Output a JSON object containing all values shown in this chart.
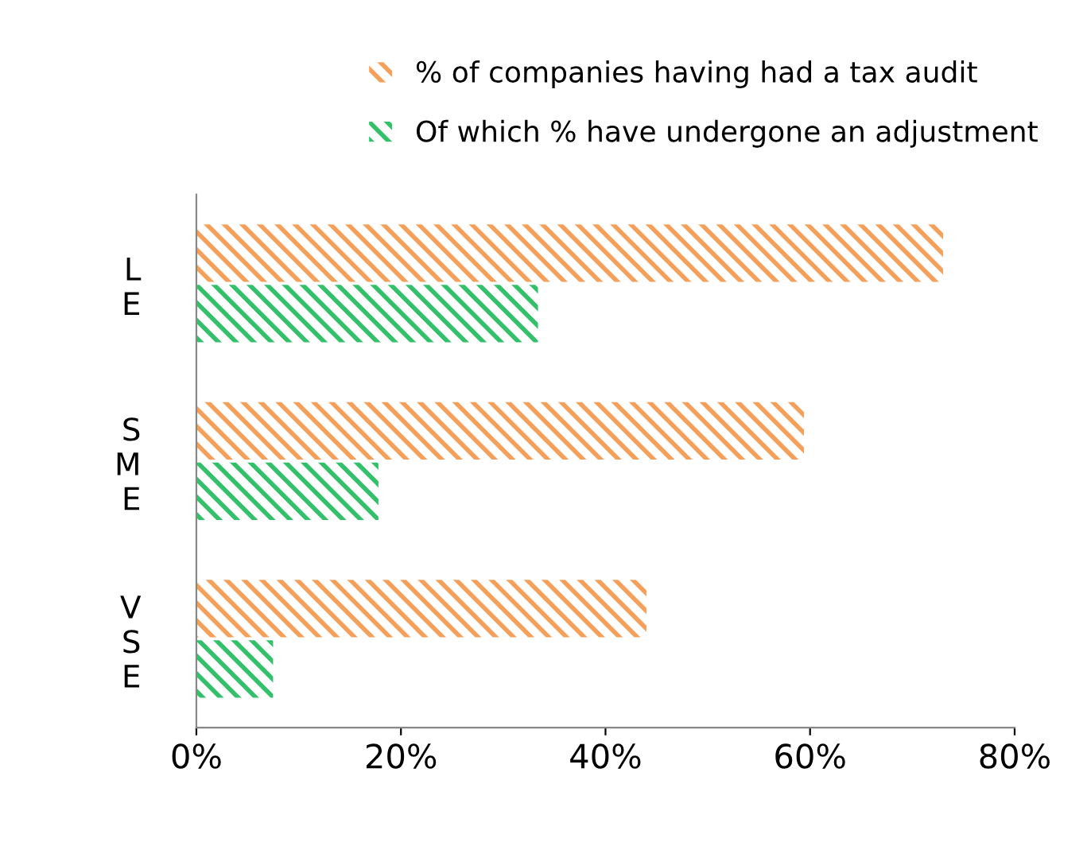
{
  "chart_data": {
    "type": "bar",
    "orientation": "horizontal",
    "categories": [
      "LE",
      "SME",
      "VSE"
    ],
    "series": [
      {
        "name": "% of companies having had a tax audit",
        "color": "#f5a05a",
        "values": [
          73,
          59.4,
          44
        ]
      },
      {
        "name": "Of which % have undergone an adjustment",
        "color": "#33c06a",
        "values": [
          33.4,
          17.8,
          7.5
        ]
      }
    ],
    "xlim": [
      0,
      80
    ],
    "xticks": [
      {
        "value": 0,
        "label": "0%"
      },
      {
        "value": 20,
        "label": "20%"
      },
      {
        "value": 40,
        "label": "40%"
      },
      {
        "value": 60,
        "label": "60%"
      },
      {
        "value": 80,
        "label": "80%"
      }
    ],
    "grid": false,
    "legend": "top"
  }
}
